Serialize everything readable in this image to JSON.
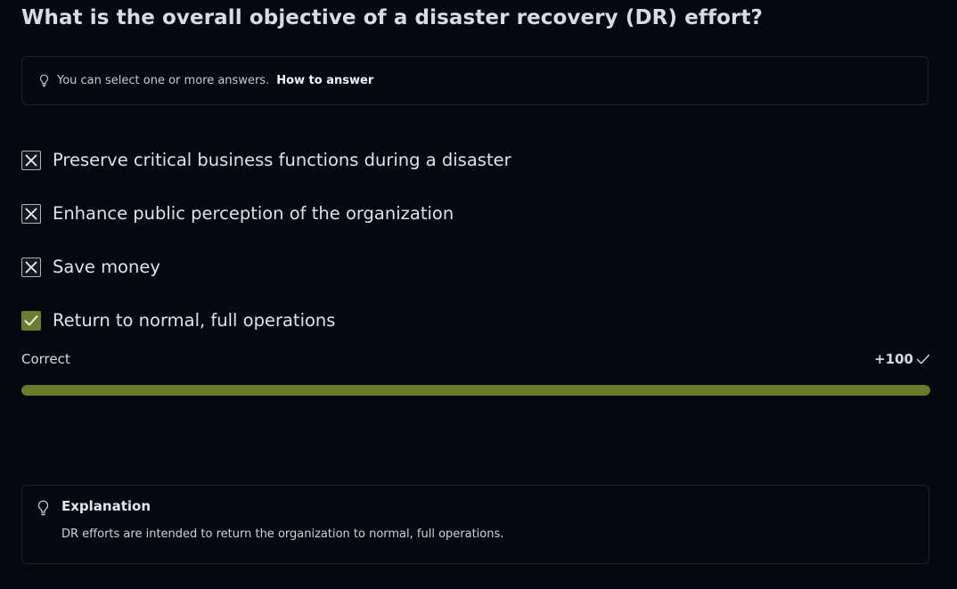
{
  "question": {
    "title": "What is the overall objective of a disaster recovery (DR) effort?"
  },
  "hint": {
    "icon": "lightbulb-icon",
    "text": "You can select one or more answers.",
    "link_label": "How to answer"
  },
  "options": [
    {
      "label": "Preserve critical business functions during a disaster",
      "state": "incorrect",
      "icon": "cross-icon"
    },
    {
      "label": "Enhance public perception of the organization",
      "state": "incorrect",
      "icon": "cross-icon"
    },
    {
      "label": "Save money",
      "state": "incorrect",
      "icon": "cross-icon"
    },
    {
      "label": "Return to normal, full operations",
      "state": "correct",
      "icon": "check-icon"
    }
  ],
  "result": {
    "label": "Correct",
    "score": "+100",
    "score_icon": "checkmark-icon",
    "progress_percent": 100
  },
  "explanation": {
    "icon": "lightbulb-icon",
    "title": "Explanation",
    "text": "DR efforts are intended to return the organization to normal, full operations."
  },
  "colors": {
    "background": "#05080f",
    "accent_green": "#6b7b2a",
    "border": "#1c2130"
  }
}
